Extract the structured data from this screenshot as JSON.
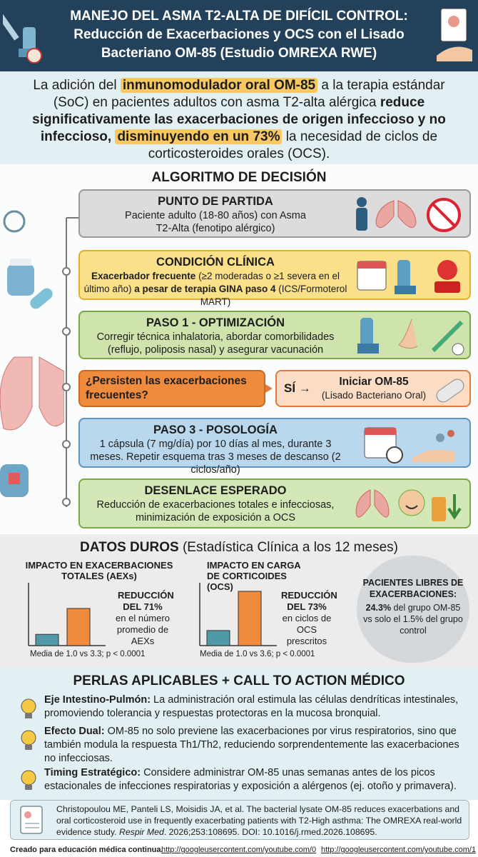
{
  "header": {
    "title_lines": [
      "MANEJO DEL ASMA T2-ALTA DE DIFÍCIL CONTROL:",
      "Reducción de Exacerbaciones y OCS con el Lisado",
      "Bacteriano OM-85 (Estudio OMREXA RWE)"
    ]
  },
  "intro": [
    "La adición del ",
    "inmunomodulador oral OM-85",
    " a la terapia estándar (SoC) en pacientes adultos con asma T2-alta alérgica ",
    "reduce significativamente las exacerbaciones de origen infeccioso y no infeccioso,",
    " ",
    "disminuyendo en un 73%",
    " la necesidad de ciclos de corticosteroides orales (OCS)."
  ],
  "algorithm": {
    "title": "ALGORITMO DE DECISIÓN",
    "start": {
      "title": "PUNTO DE PARTIDA",
      "text": "Paciente adulto (18-80 años) con Asma T2-Alta (fenotipo alérgico)"
    },
    "condition": {
      "title": "CONDICIÓN CLÍNICA",
      "text": [
        "Exacerbador frecuente",
        " (≥2 moderadas o ≥1 severa en el último año) ",
        "a pesar de terapia GINA paso 4",
        " (ICS/Formoterol MART)"
      ]
    },
    "step1": {
      "title": "PASO 1 - OPTIMIZACIÓN",
      "text": "Corregir técnica inhalatoria, abordar comorbilidades (reflujo, poliposis nasal) y asegurar vacunación"
    },
    "decision": {
      "question": "¿Persisten las exacerbaciones frecuentes?",
      "answer": "SÍ →",
      "action": "Iniciar OM-85",
      "action_note": "(Lisado Bacteriano Oral)"
    },
    "step3": {
      "title": "PASO 3 - POSOLOGÍA",
      "text": "1 cápsula (7 mg/día) por 10 días al mes, durante 3 meses. Repetir esquema tras 3 meses de descanso (2 ciclos/año)"
    },
    "outcome": {
      "title": "DESENLACE ESPERADO",
      "text": "Reducción de exacerbaciones totales e infecciosas, minimización de exposición a OCS"
    }
  },
  "data": {
    "title": "DATOS DUROS",
    "subtitle": "(Estadística Clínica a los 12 meses)",
    "charts": [
      {
        "title": "IMPACTO EN EXACERBACIONES TOTALES (AEXs)",
        "values": [
          1.0,
          3.3
        ],
        "colors": [
          "#4f9aa6",
          "#f08a3c"
        ],
        "label_bold": "REDUCCIÓN DEL 71%",
        "label": "en el número promedio de AEXs",
        "caption": "Media de 1.0 vs 3.3; p < 0.0001"
      },
      {
        "title": "IMPACTO EN CARGA DE CORTICOIDES (OCS)",
        "values": [
          1.0,
          3.6
        ],
        "colors": [
          "#4f9aa6",
          "#f08a3c"
        ],
        "label_bold": "REDUCCIÓN DEL 73%",
        "label": "en ciclos de OCS prescritos",
        "caption": "Media de 1.0 vs 3.6; p < 0.0001"
      }
    ],
    "free": {
      "title": "PACIENTES LIBRES DE EXACERBACIONES:",
      "highlight": "24.3%",
      "text": " del grupo OM-85 vs solo el 1.5% del grupo control"
    }
  },
  "pearls": {
    "title": "PERLAS APLICABLES + CALL TO ACTION MÉDICO",
    "items": [
      {
        "lead": "Eje Intestino-Pulmón:",
        "text": " La administración oral estimula las células dendríticas intestinales, promoviendo tolerancia y respuestas protectoras en la mucosa bronquial."
      },
      {
        "lead": "Efecto Dual:",
        "text": " OM-85 no solo previene las exacerbaciones por virus respiratorios, sino que también modula la respuesta Th1/Th2, reduciendo sorprendentemente las exacerbaciones no infecciosas."
      },
      {
        "lead": "Timing Estratégico:",
        "text": " Considere administrar OM-85 unas semanas antes de los picos estacionales de infecciones respiratorias y exposición a alérgenos (ej. otoño y primavera)."
      }
    ]
  },
  "citation": [
    "Christopoulou ME, Panteli LS, Moisidis JA, et al. The bacterial lysate OM-85 reduces exacerbations and oral corticosteroid use in frequently exacerbating patients with T2-High asthma: The OMREXA real-world evidence study. ",
    "Respir Med",
    ". 2026;253:108695. DOI: 10.1016/j.rmed.2026.108695."
  ],
  "footer": {
    "credit": "Creado para educación médica continua.",
    "links": [
      "http://googleusercontent.com/youtube.com/0",
      "http://googleusercontent.com/youtube.com/1"
    ]
  }
}
